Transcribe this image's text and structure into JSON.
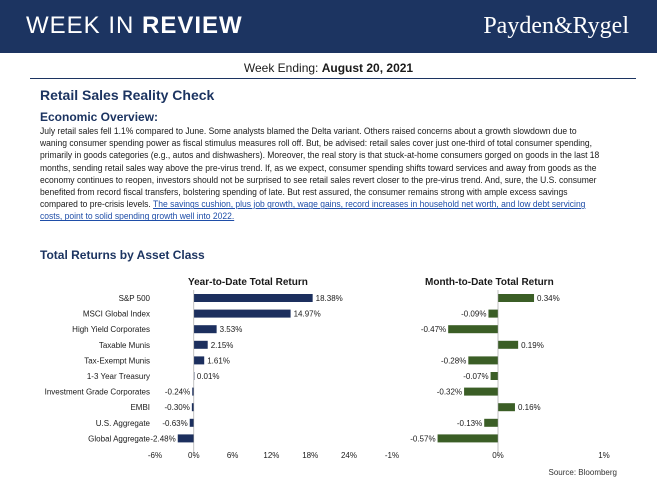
{
  "header": {
    "title_thin": "WEEK IN ",
    "title_bold": "REVIEW",
    "brand": "Payden&Rygel"
  },
  "week": {
    "label": "Week Ending: ",
    "date": "August 20, 2021"
  },
  "article": {
    "title": "Retail Sales Reality Check",
    "section": "Economic Overview:",
    "body": "July retail sales fell 1.1% compared to June. Some analysts blamed the Delta variant. Others raised concerns about a growth slowdown due to waning consumer spending power as fiscal stimulus measures roll off. But, be advised: retail sales cover just one-third of total consumer spending, primarily in goods categories (e.g., autos and dishwashers). Moreover, the real story is that stuck-at-home consumers gorged on goods in the last 18 months, sending retail sales way above the pre-virus trend. If, as we expect, consumer spending shifts toward services and away from goods as the economy continues to reopen, investors should not be surprised to see retail sales revert closer to the pre-virus trend. And, sure, the U.S. consumer benefited from record fiscal transfers, bolstering spending of late. But rest assured, the consumer remains strong with ample excess savings compared to pre-crisis levels. ",
    "link": "The savings cushion, plus job growth, wage gains, record increases in household net worth, and low debt servicing costs, point to solid spending growth well into 2022."
  },
  "returns": {
    "title": "Total Returns by Asset Class",
    "source": "Source: Bloomberg"
  },
  "chart_data": [
    {
      "type": "bar",
      "orientation": "horizontal",
      "title": "Year-to-Date Total Return",
      "categories": [
        "S&P 500",
        "MSCI Global Index",
        "High Yield Corporates",
        "Taxable Munis",
        "Tax-Exempt Munis",
        "1-3 Year Treasury",
        "Investment Grade Corporates",
        "EMBI",
        "U.S. Aggregate",
        "Global Aggregate"
      ],
      "values": [
        18.38,
        14.97,
        3.53,
        2.15,
        1.61,
        0.01,
        -0.24,
        -0.3,
        -0.63,
        -2.48
      ],
      "value_labels": [
        "18.38%",
        "14.97%",
        "3.53%",
        "2.15%",
        "1.61%",
        "0.01%",
        "-0.24%",
        "-0.30%",
        "-0.63%",
        "-2.48%"
      ],
      "xlim": [
        -6,
        24
      ],
      "ticks": [
        -6,
        0,
        6,
        12,
        18,
        24
      ],
      "tick_labels": [
        "-6%",
        "0%",
        "6%",
        "12%",
        "18%",
        "24%"
      ],
      "color": "#1c2f5e"
    },
    {
      "type": "bar",
      "orientation": "horizontal",
      "title": "Month-to-Date Total Return",
      "categories": [
        "S&P 500",
        "MSCI Global Index",
        "High Yield Corporates",
        "Taxable Munis",
        "Tax-Exempt Munis",
        "1-3 Year Treasury",
        "Investment Grade Corporates",
        "EMBI",
        "U.S. Aggregate",
        "Global Aggregate"
      ],
      "values": [
        0.34,
        -0.09,
        -0.47,
        0.19,
        -0.28,
        -0.07,
        -0.32,
        0.16,
        -0.13,
        -0.57
      ],
      "value_labels": [
        "0.34%",
        "-0.09%",
        "-0.47%",
        "0.19%",
        "-0.28%",
        "-0.07%",
        "-0.32%",
        "0.16%",
        "-0.13%",
        "-0.57%"
      ],
      "xlim": [
        -1,
        1
      ],
      "ticks": [
        -1,
        0,
        1
      ],
      "tick_labels": [
        "-1%",
        "0%",
        "1%"
      ],
      "color": "#3b5e26"
    }
  ]
}
